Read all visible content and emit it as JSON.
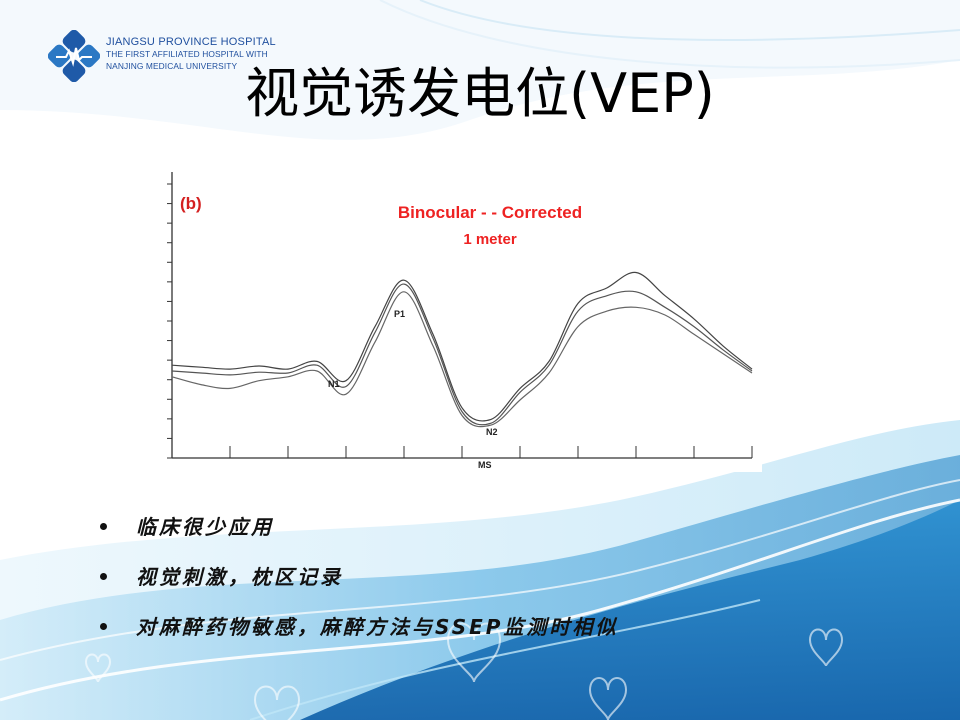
{
  "logo": {
    "line1": "JIANGSU PROVINCE HOSPITAL",
    "line2": "THE FIRST AFFILIATED HOSPITAL WITH",
    "line3": "NANJING MEDICAL UNIVERSITY"
  },
  "title": "视觉诱发电位(VEP)",
  "figure": {
    "panel_label": "(b)",
    "peak_labels": [
      "P1",
      "N1",
      "N2",
      "MS"
    ]
  },
  "chart_data": {
    "type": "line",
    "title": "Binocular - - Corrected",
    "subtitle": "1 meter",
    "xlabel": "",
    "ylabel": "",
    "grid": false,
    "legend": "none",
    "x": [
      0,
      5,
      10,
      15,
      20,
      25,
      30,
      35,
      40,
      45,
      50,
      55,
      60,
      65,
      70,
      75,
      80,
      85,
      90,
      95,
      100
    ],
    "series": [
      {
        "values": [
          0.2,
          0.15,
          0.1,
          0.18,
          0.1,
          0.3,
          -0.2,
          1.2,
          2.4,
          1.0,
          -0.9,
          -1.2,
          -0.4,
          0.3,
          1.8,
          2.2,
          2.6,
          2.0,
          1.4,
          0.7,
          0.1
        ]
      },
      {
        "values": [
          0.05,
          0.0,
          -0.05,
          0.02,
          0.0,
          0.2,
          -0.35,
          1.05,
          2.3,
          0.9,
          -1.0,
          -1.3,
          -0.5,
          0.2,
          1.6,
          2.0,
          2.1,
          1.7,
          1.2,
          0.6,
          0.05
        ]
      },
      {
        "values": [
          -0.1,
          -0.3,
          -0.4,
          -0.2,
          -0.1,
          0.05,
          -0.55,
          0.8,
          2.1,
          0.7,
          -1.1,
          -1.35,
          -0.7,
          0.0,
          1.2,
          1.6,
          1.7,
          1.5,
          1.0,
          0.5,
          0.0
        ]
      }
    ],
    "colors": [
      "#444444",
      "#555555",
      "#666666"
    ]
  },
  "bullets": [
    "临床很少应用",
    "视觉刺激，枕区记录",
    "对麻醉药物敏感，麻醉方法与SSEP监测时相似"
  ],
  "theme": {
    "wave_dark": "#1a7fc4",
    "wave_light": "#7fc6ea",
    "logo_blue": "#1f4f9e",
    "chart_red": "#e22222"
  }
}
